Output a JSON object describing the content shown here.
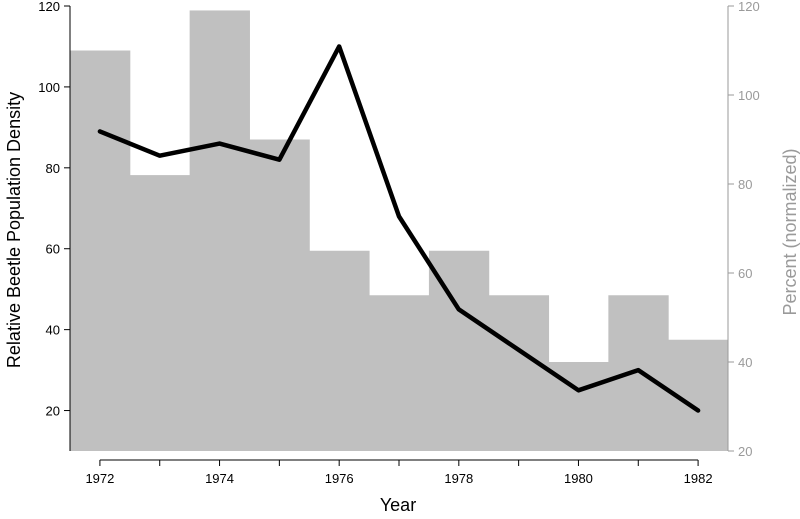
{
  "chart_data": {
    "type": "bar+line",
    "x": [
      1972,
      1973,
      1974,
      1975,
      1976,
      1977,
      1978,
      1979,
      1980,
      1981,
      1982
    ],
    "xlabel": "Year",
    "xticks": [
      "1972",
      "1974",
      "1976",
      "1978",
      "1980",
      "1982"
    ],
    "xlim": [
      1971.5,
      1982.5
    ],
    "left_axis": {
      "label": "Relative Beetle Population Density",
      "ticks": [
        "20",
        "40",
        "60",
        "80",
        "100",
        "120"
      ],
      "ylim": [
        10,
        120
      ]
    },
    "right_axis": {
      "label": "Percent (normalized)",
      "ticks": [
        "20",
        "40",
        "60",
        "80",
        "100",
        "120"
      ],
      "ylim": [
        20,
        120
      ]
    },
    "bars": {
      "axis": "right",
      "values": [
        110,
        82,
        119,
        90,
        65,
        55,
        65,
        55,
        40,
        55,
        45
      ],
      "color": "#c0c0c0"
    },
    "line": {
      "axis": "left",
      "values": [
        89,
        83,
        86,
        82,
        110,
        68,
        45,
        35,
        25,
        30,
        20
      ],
      "color": "#000000"
    },
    "grid": false,
    "legend": "none",
    "colors": {
      "left_axis": "#000000",
      "right_axis": "#9a9a9a"
    }
  }
}
